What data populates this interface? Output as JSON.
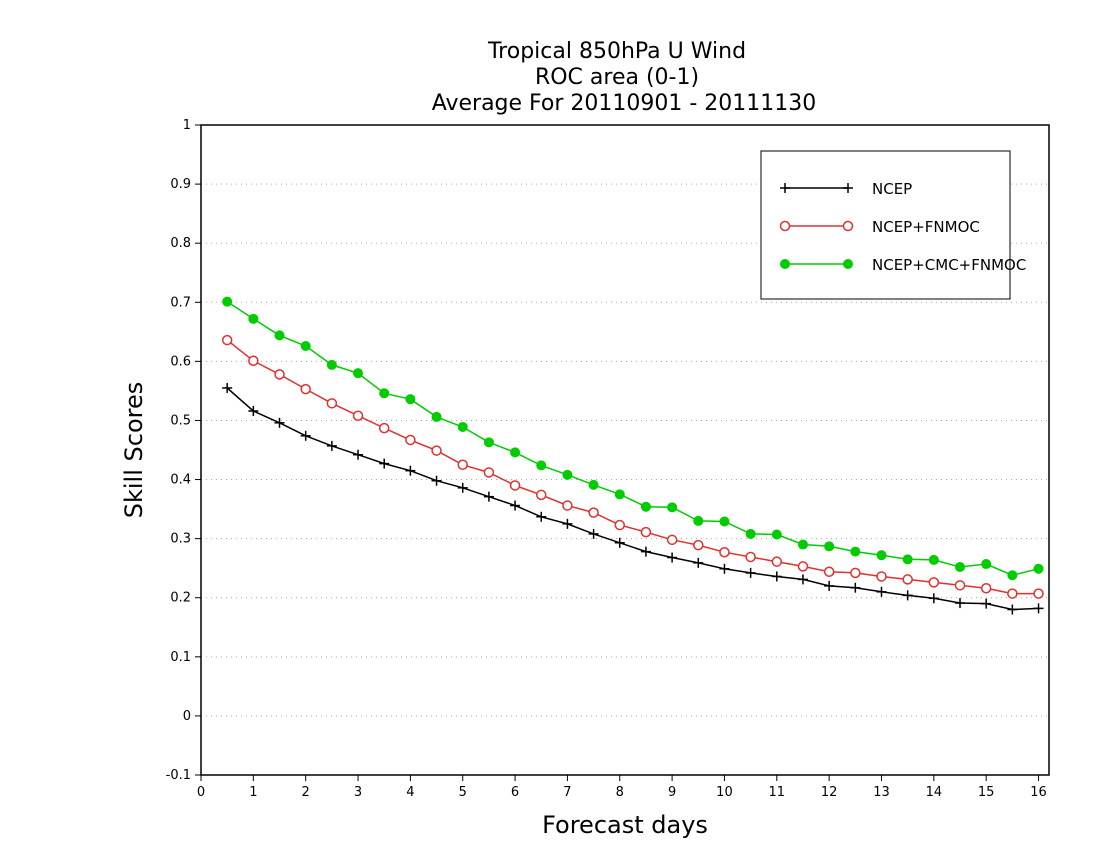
{
  "chart_data": {
    "type": "line",
    "title_lines": [
      "Tropical 850hPa U Wind",
      "ROC area (0-1)",
      "Average For 20110901 - 20111130"
    ],
    "xlabel": "Forecast days",
    "ylabel": "Skill Scores",
    "xlim": [
      0,
      16.2
    ],
    "ylim": [
      -0.1,
      1
    ],
    "xticks": [
      0,
      1,
      2,
      3,
      4,
      5,
      6,
      7,
      8,
      9,
      10,
      11,
      12,
      13,
      14,
      15,
      16
    ],
    "xtick_labels": [
      "0",
      "1",
      "2",
      "3",
      "4",
      "5",
      "6",
      "7",
      "8",
      "9",
      "10",
      "11",
      "12",
      "13",
      "14",
      "15",
      "16"
    ],
    "yticks": [
      -0.1,
      0,
      0.1,
      0.2,
      0.3,
      0.4,
      0.5,
      0.6,
      0.7,
      0.8,
      0.9,
      1
    ],
    "ytick_labels": [
      "-0.1",
      "0",
      "0.1",
      "0.2",
      "0.3",
      "0.4",
      "0.5",
      "0.6",
      "0.7",
      "0.8",
      "0.9",
      "1"
    ],
    "grid": "horizontal dotted",
    "legend_position": "top-right",
    "x": [
      0.5,
      1,
      1.5,
      2,
      2.5,
      3,
      3.5,
      4,
      4.5,
      5,
      5.5,
      6,
      6.5,
      7,
      7.5,
      8,
      8.5,
      9,
      9.5,
      10,
      10.5,
      11,
      11.5,
      12,
      12.5,
      13,
      13.5,
      14,
      14.5,
      15,
      15.5,
      16
    ],
    "series": [
      {
        "name": "NCEP",
        "color": "#000000",
        "marker": "plus",
        "values": [
          0.555,
          0.516,
          0.496,
          0.474,
          0.457,
          0.442,
          0.427,
          0.415,
          0.398,
          0.386,
          0.371,
          0.356,
          0.337,
          0.325,
          0.308,
          0.293,
          0.278,
          0.268,
          0.259,
          0.249,
          0.242,
          0.236,
          0.231,
          0.22,
          0.217,
          0.21,
          0.204,
          0.199,
          0.191,
          0.19,
          0.18,
          0.182
        ]
      },
      {
        "name": "NCEP+FNMOC",
        "color": "#e03030",
        "marker": "open-circle",
        "values": [
          0.636,
          0.601,
          0.578,
          0.553,
          0.529,
          0.508,
          0.487,
          0.467,
          0.449,
          0.425,
          0.412,
          0.39,
          0.374,
          0.356,
          0.344,
          0.323,
          0.311,
          0.298,
          0.289,
          0.277,
          0.269,
          0.261,
          0.253,
          0.244,
          0.242,
          0.236,
          0.231,
          0.226,
          0.221,
          0.216,
          0.207,
          0.207
        ]
      },
      {
        "name": "NCEP+CMC+FNMOC",
        "color": "#00cc00",
        "marker": "filled-circle",
        "values": [
          0.701,
          0.672,
          0.644,
          0.626,
          0.594,
          0.58,
          0.546,
          0.536,
          0.506,
          0.489,
          0.463,
          0.446,
          0.424,
          0.408,
          0.391,
          0.375,
          0.354,
          0.353,
          0.33,
          0.329,
          0.308,
          0.307,
          0.29,
          0.287,
          0.278,
          0.272,
          0.265,
          0.264,
          0.252,
          0.257,
          0.238,
          0.249
        ]
      }
    ]
  }
}
